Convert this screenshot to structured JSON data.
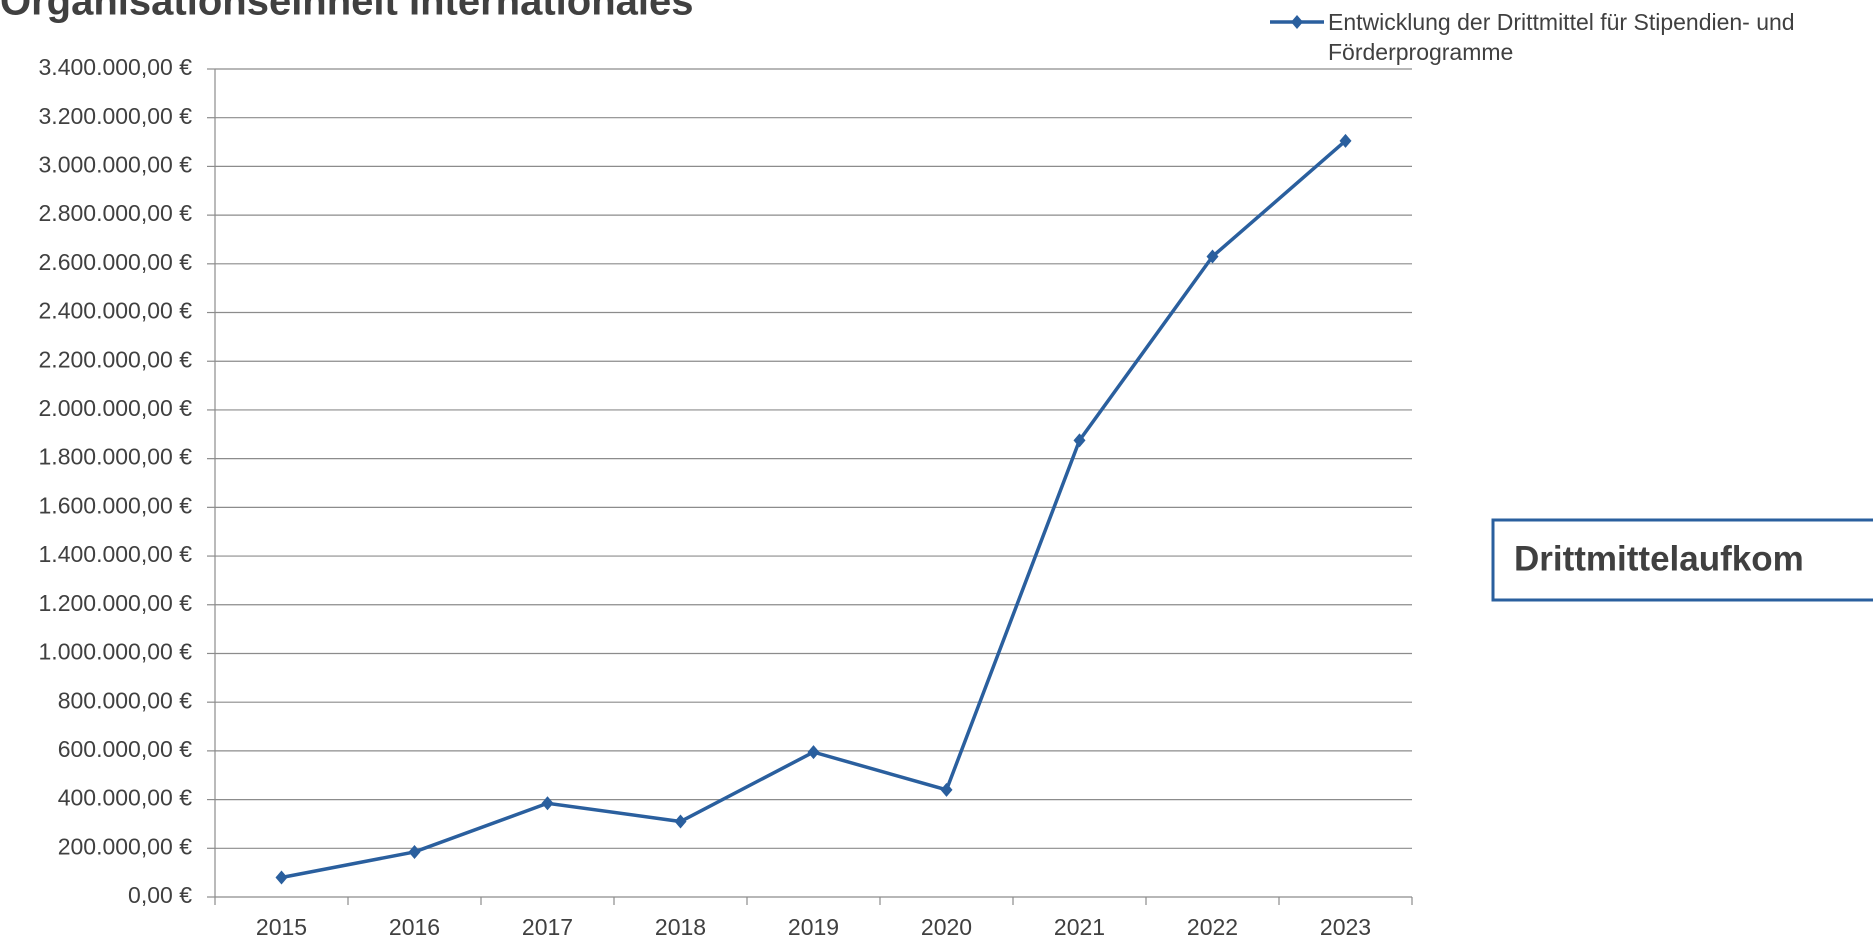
{
  "chart_data": {
    "type": "line",
    "title": "Organisationseinheit Internationales",
    "annotation": "Drittmittelaufkom",
    "categories": [
      "2015",
      "2016",
      "2017",
      "2018",
      "2019",
      "2020",
      "2021",
      "2022",
      "2023"
    ],
    "series": [
      {
        "name": "Entwicklung der Drittmittel für Stipendien- und Förderprogramme",
        "color": "#2a5f9e",
        "values": [
          80000,
          185000,
          385000,
          310000,
          595000,
          440000,
          1875000,
          2630000,
          3105000
        ]
      }
    ],
    "ylim": [
      0,
      3400000
    ],
    "yticks": [
      {
        "value": 0,
        "label": "0,00 €"
      },
      {
        "value": 200000,
        "label": "200.000,00 €"
      },
      {
        "value": 400000,
        "label": "400.000,00 €"
      },
      {
        "value": 600000,
        "label": "600.000,00 €"
      },
      {
        "value": 800000,
        "label": "800.000,00 €"
      },
      {
        "value": 1000000,
        "label": "1.000.000,00 €"
      },
      {
        "value": 1200000,
        "label": "1.200.000,00 €"
      },
      {
        "value": 1400000,
        "label": "1.400.000,00 €"
      },
      {
        "value": 1600000,
        "label": "1.600.000,00 €"
      },
      {
        "value": 1800000,
        "label": "1.800.000,00 €"
      },
      {
        "value": 2000000,
        "label": "2.000.000,00 €"
      },
      {
        "value": 2200000,
        "label": "2.200.000,00 €"
      },
      {
        "value": 2400000,
        "label": "2.400.000,00 €"
      },
      {
        "value": 2600000,
        "label": "2.600.000,00 €"
      },
      {
        "value": 2800000,
        "label": "2.800.000,00 €"
      },
      {
        "value": 3000000,
        "label": "3.000.000,00 €"
      },
      {
        "value": 3200000,
        "label": "3.200.000,00 €"
      },
      {
        "value": 3400000,
        "label": "3.400.000,00 €"
      }
    ],
    "grid": true,
    "legend": "top-right"
  }
}
